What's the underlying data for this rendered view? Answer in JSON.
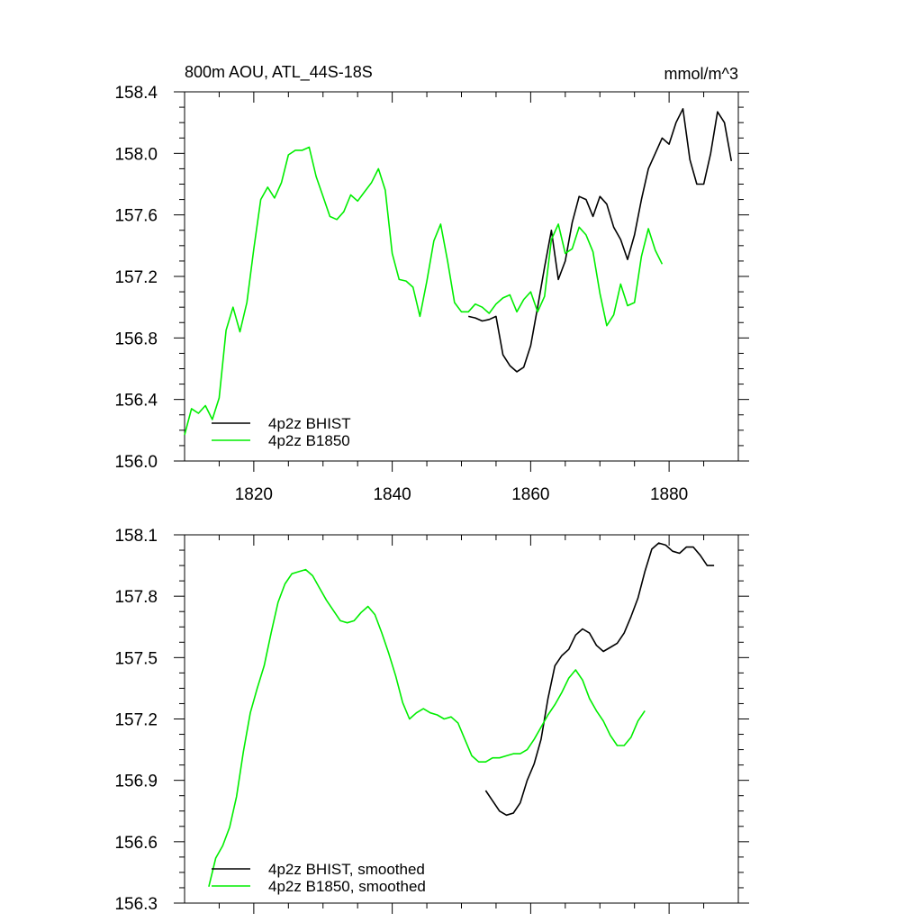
{
  "chart_data": [
    {
      "type": "line",
      "title_left": "800m AOU, ATL_44S-18S",
      "title_right": "mmol/m^3",
      "xlim": [
        1810,
        1890
      ],
      "ylim": [
        156.0,
        158.4
      ],
      "x_ticks": [
        1820,
        1840,
        1860,
        1880
      ],
      "y_ticks": [
        156.0,
        156.4,
        156.8,
        157.2,
        157.6,
        158.0,
        158.4
      ],
      "y_tick_labels": [
        "156.0",
        "156.4",
        "156.8",
        "157.2",
        "157.6",
        "158.0",
        "158.4"
      ],
      "legend_position": "bottom-left",
      "series": [
        {
          "name": "4p2z BHIST",
          "color": "#000000",
          "x": [
            1851,
            1852,
            1853,
            1854,
            1855,
            1856,
            1857,
            1858,
            1859,
            1860,
            1861,
            1862,
            1863,
            1864,
            1865,
            1866,
            1867,
            1868,
            1869,
            1870,
            1871,
            1872,
            1873,
            1874,
            1875,
            1876,
            1877,
            1878,
            1879,
            1880,
            1881,
            1882,
            1883,
            1884,
            1885,
            1886,
            1887,
            1888,
            1889
          ],
          "y": [
            156.94,
            156.93,
            156.91,
            156.92,
            156.94,
            156.69,
            156.62,
            156.58,
            156.61,
            156.75,
            157.0,
            157.26,
            157.5,
            157.18,
            157.3,
            157.55,
            157.72,
            157.7,
            157.59,
            157.72,
            157.67,
            157.52,
            157.44,
            157.31,
            157.47,
            157.7,
            157.9,
            158.0,
            158.1,
            158.06,
            158.2,
            158.29,
            157.96,
            157.8,
            157.8,
            158.0,
            158.27,
            158.2,
            157.95
          ]
        },
        {
          "name": "4p2z B1850",
          "color": "#00ee00",
          "x": [
            1810,
            1811,
            1812,
            1813,
            1814,
            1815,
            1816,
            1817,
            1818,
            1819,
            1820,
            1821,
            1822,
            1823,
            1824,
            1825,
            1826,
            1827,
            1828,
            1829,
            1830,
            1831,
            1832,
            1833,
            1834,
            1835,
            1836,
            1837,
            1838,
            1839,
            1840,
            1841,
            1842,
            1843,
            1844,
            1845,
            1846,
            1847,
            1848,
            1849,
            1850,
            1851,
            1852,
            1853,
            1854,
            1855,
            1856,
            1857,
            1858,
            1859,
            1860,
            1861,
            1862,
            1863,
            1864,
            1865,
            1866,
            1867,
            1868,
            1869,
            1870,
            1871,
            1872,
            1873,
            1874,
            1875,
            1876,
            1877,
            1878,
            1879
          ],
          "y": [
            156.17,
            156.34,
            156.31,
            156.36,
            156.27,
            156.41,
            156.85,
            157.0,
            156.84,
            157.03,
            157.38,
            157.7,
            157.78,
            157.71,
            157.81,
            157.99,
            158.02,
            158.02,
            158.04,
            157.85,
            157.72,
            157.59,
            157.57,
            157.62,
            157.73,
            157.69,
            157.75,
            157.81,
            157.9,
            157.76,
            157.35,
            157.18,
            157.17,
            157.13,
            156.94,
            157.17,
            157.43,
            157.54,
            157.3,
            157.03,
            156.97,
            156.97,
            157.02,
            157.0,
            156.96,
            157.02,
            157.06,
            157.08,
            156.97,
            157.05,
            157.1,
            156.97,
            157.07,
            157.44,
            157.54,
            157.35,
            157.38,
            157.52,
            157.47,
            157.36,
            157.09,
            156.88,
            156.95,
            157.15,
            157.01,
            157.03,
            157.33,
            157.51,
            157.37,
            157.28
          ]
        }
      ]
    },
    {
      "type": "line",
      "xlim": [
        1810,
        1890
      ],
      "ylim": [
        156.3,
        158.1
      ],
      "x_ticks": [
        1820,
        1840,
        1860,
        1880
      ],
      "y_ticks": [
        156.3,
        156.6,
        156.9,
        157.2,
        157.5,
        157.8,
        158.1
      ],
      "y_tick_labels": [
        "156.3",
        "156.6",
        "156.9",
        "157.2",
        "157.5",
        "157.8",
        "158.1"
      ],
      "legend_position": "bottom-left",
      "series": [
        {
          "name": "4p2z BHIST, smoothed",
          "color": "#000000",
          "x": [
            1853.5,
            1854.5,
            1855.5,
            1856.5,
            1857.5,
            1858.5,
            1859.5,
            1860.5,
            1861.5,
            1862.5,
            1863.5,
            1864.5,
            1865.5,
            1866.5,
            1867.5,
            1868.5,
            1869.5,
            1870.5,
            1871.5,
            1872.5,
            1873.5,
            1874.5,
            1875.5,
            1876.5,
            1877.5,
            1878.5,
            1879.5,
            1880.5,
            1881.5,
            1882.5,
            1883.5,
            1884.5,
            1885.5,
            1886.5
          ],
          "y": [
            156.85,
            156.8,
            156.75,
            156.73,
            156.74,
            156.79,
            156.9,
            156.98,
            157.1,
            157.3,
            157.46,
            157.51,
            157.54,
            157.61,
            157.64,
            157.62,
            157.56,
            157.53,
            157.55,
            157.57,
            157.62,
            157.7,
            157.79,
            157.92,
            158.03,
            158.06,
            158.05,
            158.02,
            158.01,
            158.04,
            158.04,
            158.0,
            157.95,
            157.95
          ]
        },
        {
          "name": "4p2z B1850, smoothed",
          "color": "#00ee00",
          "x": [
            1813.5,
            1814.5,
            1815.5,
            1816.5,
            1817.5,
            1818.5,
            1819.5,
            1820.5,
            1821.5,
            1822.5,
            1823.5,
            1824.5,
            1825.5,
            1826.5,
            1827.5,
            1828.5,
            1829.5,
            1830.5,
            1831.5,
            1832.5,
            1833.5,
            1834.5,
            1835.5,
            1836.5,
            1837.5,
            1838.5,
            1839.5,
            1840.5,
            1841.5,
            1842.5,
            1843.5,
            1844.5,
            1845.5,
            1846.5,
            1847.5,
            1848.5,
            1849.5,
            1850.5,
            1851.5,
            1852.5,
            1853.5,
            1854.5,
            1855.5,
            1856.5,
            1857.5,
            1858.5,
            1859.5,
            1860.5,
            1861.5,
            1862.5,
            1863.5,
            1864.5,
            1865.5,
            1866.5,
            1867.5,
            1868.5,
            1869.5,
            1870.5,
            1871.5,
            1872.5,
            1873.5,
            1874.5,
            1875.5,
            1876.5
          ],
          "y": [
            156.38,
            156.52,
            156.58,
            156.67,
            156.82,
            157.04,
            157.23,
            157.35,
            157.46,
            157.62,
            157.77,
            157.86,
            157.91,
            157.92,
            157.93,
            157.9,
            157.84,
            157.78,
            157.73,
            157.68,
            157.67,
            157.68,
            157.72,
            157.75,
            157.71,
            157.62,
            157.52,
            157.41,
            157.28,
            157.2,
            157.23,
            157.25,
            157.23,
            157.22,
            157.2,
            157.21,
            157.18,
            157.1,
            157.02,
            156.99,
            156.99,
            157.01,
            157.01,
            157.02,
            157.03,
            157.03,
            157.05,
            157.1,
            157.16,
            157.22,
            157.27,
            157.33,
            157.4,
            157.44,
            157.39,
            157.3,
            157.24,
            157.19,
            157.12,
            157.07,
            157.07,
            157.11,
            157.19,
            157.24
          ]
        }
      ]
    }
  ]
}
